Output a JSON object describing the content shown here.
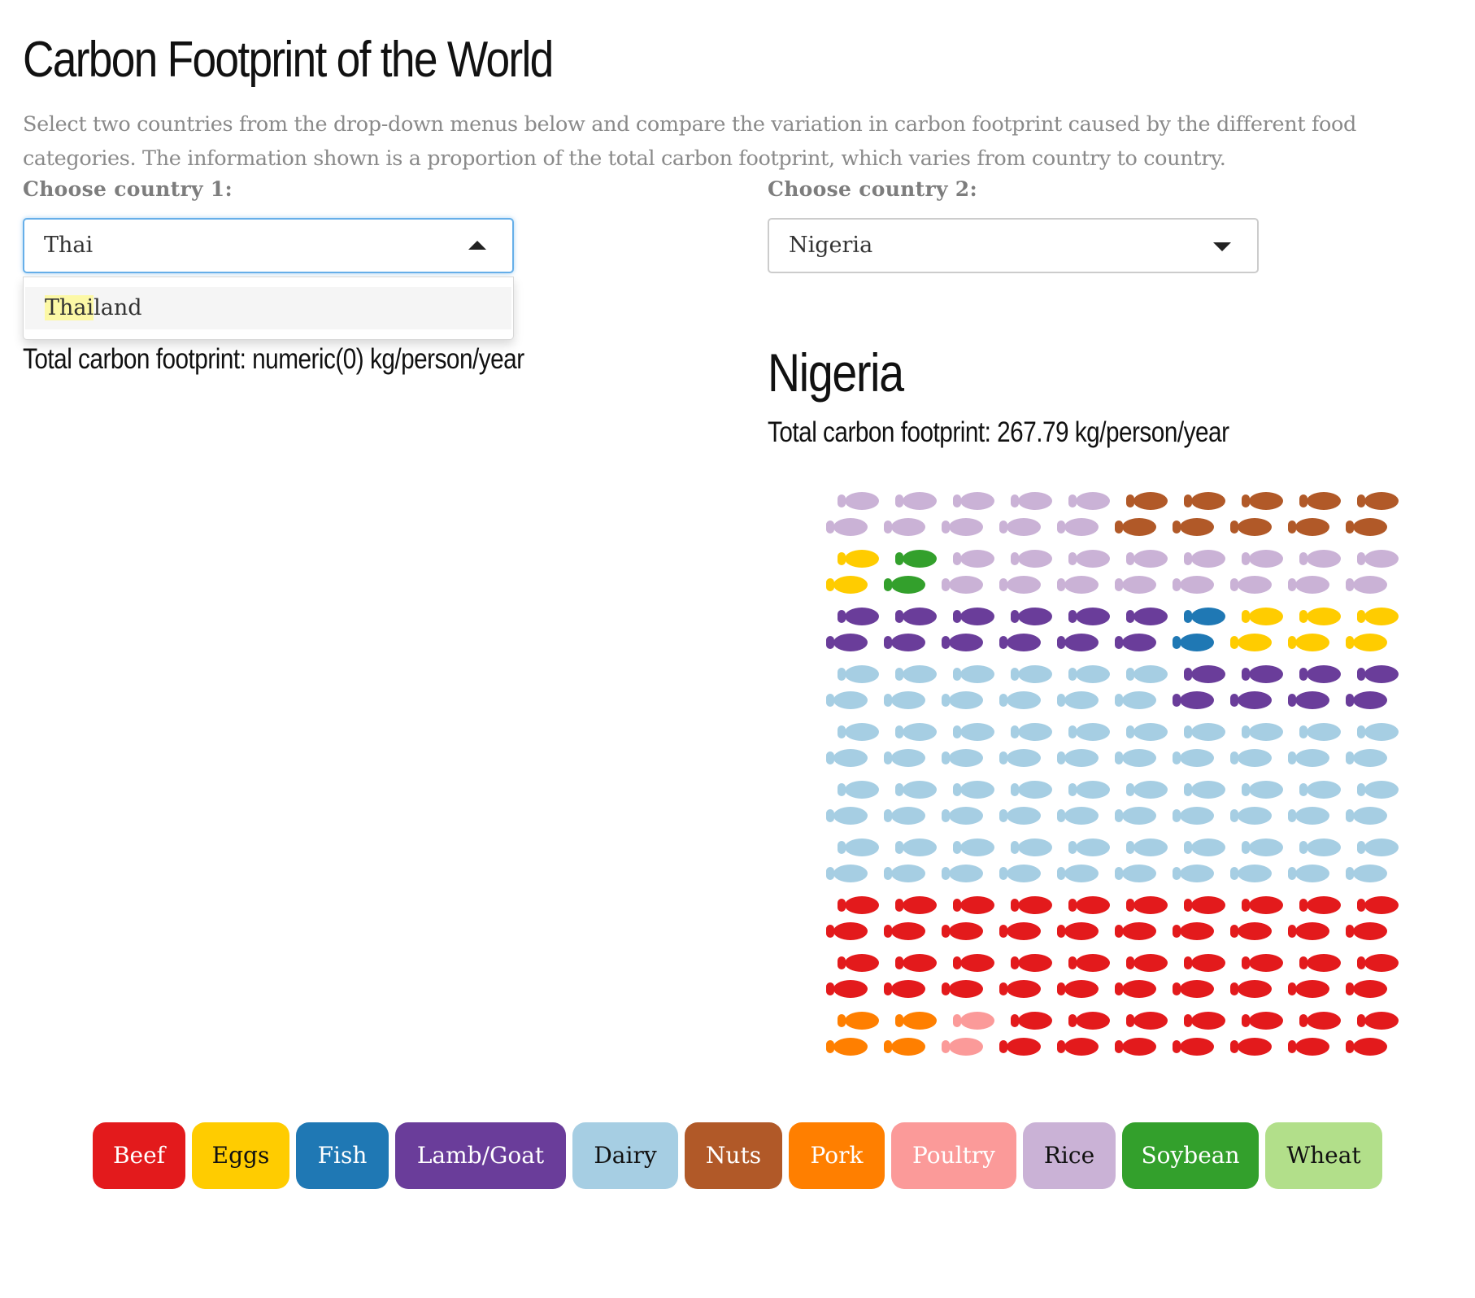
{
  "header": {
    "title": "Carbon Footprint of the World",
    "intro": "Select two countries from the drop-down menus below and compare the variation in carbon footprint caused by the different food categories. The information shown is a proportion of the total carbon footprint, which varies from country to country."
  },
  "country1": {
    "label": "Choose country 1:",
    "input_value": "Thai",
    "dropdown_open": true,
    "option": {
      "match": "Thai",
      "rest": "land"
    },
    "total_text": "Total carbon footprint: numeric(0) kg/person/year"
  },
  "country2": {
    "label": "Choose country 2:",
    "selected": "Nigeria",
    "heading": "Nigeria",
    "total_text": "Total carbon footprint: 267.79 kg/person/year"
  },
  "legend": [
    {
      "name": "Beef",
      "color": "#e31a1c",
      "text_color": "#ffffff"
    },
    {
      "name": "Eggs",
      "color": "#ffcc00",
      "text_color": "#111111"
    },
    {
      "name": "Fish",
      "color": "#1f78b4",
      "text_color": "#ffffff"
    },
    {
      "name": "Lamb/Goat",
      "color": "#6a3d9a",
      "text_color": "#ffffff"
    },
    {
      "name": "Dairy",
      "color": "#a6cee3",
      "text_color": "#111111"
    },
    {
      "name": "Nuts",
      "color": "#b15928",
      "text_color": "#ffffff"
    },
    {
      "name": "Pork",
      "color": "#ff7f00",
      "text_color": "#ffffff"
    },
    {
      "name": "Poultry",
      "color": "#fb9a99",
      "text_color": "#ffffff"
    },
    {
      "name": "Rice",
      "color": "#cab2d6",
      "text_color": "#111111"
    },
    {
      "name": "Soybean",
      "color": "#33a02c",
      "text_color": "#ffffff"
    },
    {
      "name": "Wheat",
      "color": "#b2df8a",
      "text_color": "#111111"
    }
  ],
  "chart_data": {
    "type": "waffle",
    "country": "Nigeria",
    "columns": 10,
    "rows": 10,
    "icon": "footprint-pair",
    "cells_by_row": [
      [
        "Rice",
        "Rice",
        "Rice",
        "Rice",
        "Rice",
        "Nuts",
        "Nuts",
        "Nuts",
        "Nuts",
        "Nuts"
      ],
      [
        "Eggs",
        "Soybean",
        "Rice",
        "Rice",
        "Rice",
        "Rice",
        "Rice",
        "Rice",
        "Rice",
        "Rice"
      ],
      [
        "Lamb/Goat",
        "Lamb/Goat",
        "Lamb/Goat",
        "Lamb/Goat",
        "Lamb/Goat",
        "Lamb/Goat",
        "Fish",
        "Eggs",
        "Eggs",
        "Eggs"
      ],
      [
        "Dairy",
        "Dairy",
        "Dairy",
        "Dairy",
        "Dairy",
        "Dairy",
        "Lamb/Goat",
        "Lamb/Goat",
        "Lamb/Goat",
        "Lamb/Goat"
      ],
      [
        "Dairy",
        "Dairy",
        "Dairy",
        "Dairy",
        "Dairy",
        "Dairy",
        "Dairy",
        "Dairy",
        "Dairy",
        "Dairy"
      ],
      [
        "Dairy",
        "Dairy",
        "Dairy",
        "Dairy",
        "Dairy",
        "Dairy",
        "Dairy",
        "Dairy",
        "Dairy",
        "Dairy"
      ],
      [
        "Dairy",
        "Dairy",
        "Dairy",
        "Dairy",
        "Dairy",
        "Dairy",
        "Dairy",
        "Dairy",
        "Dairy",
        "Dairy"
      ],
      [
        "Beef",
        "Beef",
        "Beef",
        "Beef",
        "Beef",
        "Beef",
        "Beef",
        "Beef",
        "Beef",
        "Beef"
      ],
      [
        "Beef",
        "Beef",
        "Beef",
        "Beef",
        "Beef",
        "Beef",
        "Beef",
        "Beef",
        "Beef",
        "Beef"
      ],
      [
        "Pork",
        "Pork",
        "Poultry",
        "Beef",
        "Beef",
        "Beef",
        "Beef",
        "Beef",
        "Beef",
        "Beef"
      ]
    ],
    "counts": {
      "Beef": 27,
      "Dairy": 36,
      "Lamb/Goat": 10,
      "Rice": 13,
      "Nuts": 5,
      "Eggs": 4,
      "Pork": 2,
      "Poultry": 1,
      "Fish": 1,
      "Soybean": 1,
      "Wheat": 0
    }
  }
}
